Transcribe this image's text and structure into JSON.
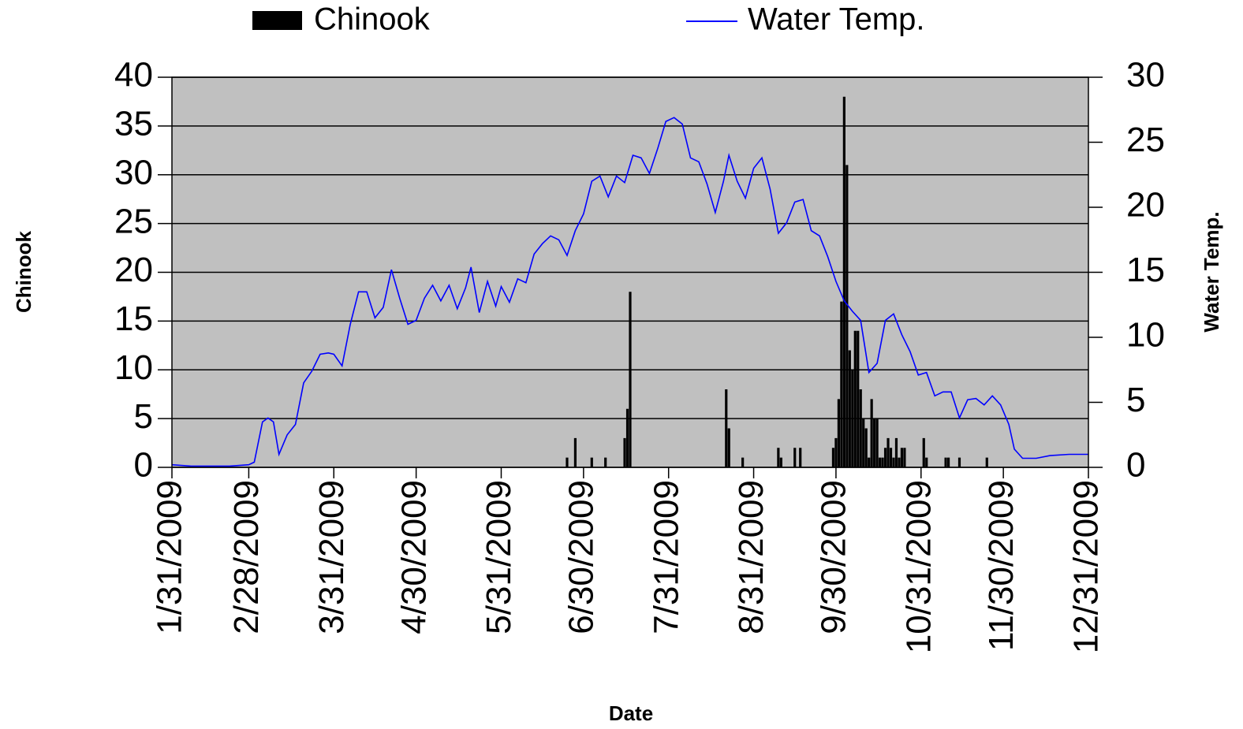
{
  "chart_data": {
    "type": "bar",
    "xlabel": "Date",
    "ylabel": "Chinook",
    "y2label": "Water Temp.",
    "xlim": [
      "1/31/2009",
      "12/31/2009"
    ],
    "xticks": [
      "1/31/2009",
      "2/28/2009",
      "3/31/2009",
      "4/30/2009",
      "5/31/2009",
      "6/30/2009",
      "7/31/2009",
      "8/31/2009",
      "9/30/2009",
      "10/31/2009",
      "11/30/2009",
      "12/31/2009"
    ],
    "ylim": [
      0,
      40
    ],
    "yticks": [
      0,
      5,
      10,
      15,
      20,
      25,
      30,
      35,
      40
    ],
    "y2lim": [
      0,
      30
    ],
    "y2ticks": [
      0,
      5,
      10,
      15,
      20,
      25,
      30
    ],
    "grid": true,
    "legend": "top",
    "background": "#c0c0c0",
    "series": [
      {
        "name": "Chinook",
        "type": "bar",
        "color": "#000000",
        "x": [
          "6/24/2009",
          "6/27/2009",
          "7/3/2009",
          "7/8/2009",
          "7/15/2009",
          "7/16/2009",
          "7/17/2009",
          "8/21/2009",
          "8/22/2009",
          "8/27/2009",
          "9/9/2009",
          "9/10/2009",
          "9/15/2009",
          "9/17/2009",
          "9/29/2009",
          "9/30/2009",
          "10/1/2009",
          "10/2/2009",
          "10/3/2009",
          "10/4/2009",
          "10/5/2009",
          "10/6/2009",
          "10/7/2009",
          "10/8/2009",
          "10/9/2009",
          "10/10/2009",
          "10/11/2009",
          "10/12/2009",
          "10/13/2009",
          "10/14/2009",
          "10/15/2009",
          "10/16/2009",
          "10/17/2009",
          "10/18/2009",
          "10/19/2009",
          "10/20/2009",
          "10/21/2009",
          "10/22/2009",
          "10/23/2009",
          "10/24/2009",
          "10/25/2009",
          "11/1/2009",
          "11/2/2009",
          "11/9/2009",
          "11/10/2009",
          "11/14/2009",
          "11/24/2009"
        ],
        "values": [
          1,
          3,
          1,
          1,
          3,
          6,
          18,
          8,
          4,
          1,
          2,
          1,
          2,
          2,
          2,
          3,
          7,
          17,
          38,
          31,
          12,
          10,
          14,
          14,
          8,
          5,
          4,
          1,
          7,
          5,
          5,
          1,
          1,
          2,
          3,
          2,
          1,
          3,
          1,
          2,
          2,
          3,
          1,
          1,
          1,
          1,
          1
        ]
      },
      {
        "name": "Water Temp.",
        "type": "line",
        "axis": "y2",
        "color": "#0000ff",
        "x": [
          "1/31/2009",
          "2/7/2009",
          "2/14/2009",
          "2/21/2009",
          "2/28/2009",
          "3/2/2009",
          "3/5/2009",
          "3/7/2009",
          "3/9/2009",
          "3/11/2009",
          "3/14/2009",
          "3/17/2009",
          "3/20/2009",
          "3/23/2009",
          "3/26/2009",
          "3/29/2009",
          "3/31/2009",
          "4/3/2009",
          "4/6/2009",
          "4/9/2009",
          "4/12/2009",
          "4/15/2009",
          "4/18/2009",
          "4/21/2009",
          "4/24/2009",
          "4/27/2009",
          "4/30/2009",
          "5/3/2009",
          "5/6/2009",
          "5/9/2009",
          "5/12/2009",
          "5/15/2009",
          "5/18/2009",
          "5/20/2009",
          "5/23/2009",
          "5/26/2009",
          "5/29/2009",
          "5/31/2009",
          "6/3/2009",
          "6/6/2009",
          "6/9/2009",
          "6/12/2009",
          "6/15/2009",
          "6/18/2009",
          "6/21/2009",
          "6/24/2009",
          "6/27/2009",
          "6/30/2009",
          "7/3/2009",
          "7/6/2009",
          "7/9/2009",
          "7/12/2009",
          "7/15/2009",
          "7/18/2009",
          "7/21/2009",
          "7/24/2009",
          "7/27/2009",
          "7/30/2009",
          "8/2/2009",
          "8/5/2009",
          "8/8/2009",
          "8/11/2009",
          "8/14/2009",
          "8/17/2009",
          "8/20/2009",
          "8/22/2009",
          "8/25/2009",
          "8/28/2009",
          "8/31/2009",
          "9/3/2009",
          "9/6/2009",
          "9/9/2009",
          "9/12/2009",
          "9/15/2009",
          "9/18/2009",
          "9/21/2009",
          "9/24/2009",
          "9/27/2009",
          "9/30/2009",
          "10/3/2009",
          "10/6/2009",
          "10/9/2009",
          "10/12/2009",
          "10/15/2009",
          "10/18/2009",
          "10/21/2009",
          "10/24/2009",
          "10/27/2009",
          "10/30/2009",
          "11/2/2009",
          "11/5/2009",
          "11/8/2009",
          "11/11/2009",
          "11/14/2009",
          "11/17/2009",
          "11/20/2009",
          "11/23/2009",
          "11/26/2009",
          "11/29/2009",
          "12/2/2009",
          "12/4/2009",
          "12/7/2009",
          "12/12/2009",
          "12/17/2009",
          "12/24/2009",
          "12/31/2009"
        ],
        "values": [
          0.2,
          0.1,
          0.1,
          0.1,
          0.2,
          0.4,
          3.5,
          3.8,
          3.5,
          1.0,
          2.5,
          3.3,
          6.5,
          7.4,
          8.7,
          8.8,
          8.7,
          7.8,
          11.0,
          13.5,
          13.5,
          11.5,
          12.3,
          15.2,
          13.0,
          11.0,
          11.3,
          13.0,
          14.0,
          12.8,
          14.0,
          12.2,
          13.8,
          15.4,
          11.9,
          14.3,
          12.4,
          13.9,
          12.7,
          14.5,
          14.2,
          16.4,
          17.2,
          17.8,
          17.5,
          16.3,
          18.2,
          19.5,
          22.0,
          22.4,
          20.8,
          22.4,
          21.9,
          24.0,
          23.8,
          22.6,
          24.5,
          26.6,
          26.9,
          26.4,
          23.8,
          23.5,
          21.8,
          19.6,
          22.0,
          24.0,
          22.0,
          20.7,
          23.0,
          23.8,
          21.4,
          18.0,
          18.8,
          20.4,
          20.6,
          18.2,
          17.8,
          16.2,
          14.3,
          12.8,
          12.0,
          11.3,
          7.3,
          8.0,
          11.3,
          11.8,
          10.2,
          8.9,
          7.1,
          7.3,
          5.5,
          5.8,
          5.8,
          3.8,
          5.2,
          5.3,
          4.8,
          5.5,
          4.8,
          3.3,
          1.4,
          0.7,
          0.7,
          0.9,
          1.0,
          1.0
        ]
      }
    ]
  }
}
